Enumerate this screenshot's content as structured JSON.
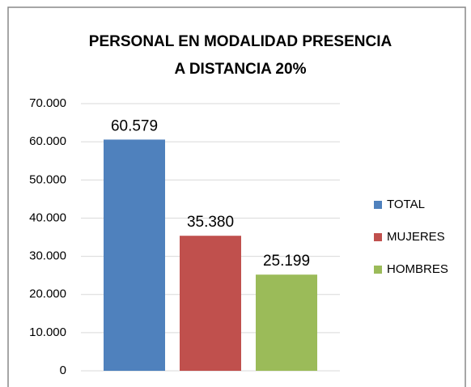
{
  "chart_data": {
    "type": "bar",
    "title": [
      "PERSONAL EN MODALIDAD PRESENCIA",
      "A DISTANCIA 20%"
    ],
    "categories": [
      null
    ],
    "series": [
      {
        "name": "TOTAL",
        "color": "#4f81bd",
        "values": [
          60579
        ],
        "value_labels": [
          "60.579"
        ]
      },
      {
        "name": "MUJERES",
        "color": "#c0504d",
        "values": [
          35380
        ],
        "value_labels": [
          "35.380"
        ]
      },
      {
        "name": "HOMBRES",
        "color": "#9bbb59",
        "values": [
          25199
        ],
        "value_labels": [
          "25.199"
        ]
      }
    ],
    "ylim": [
      0,
      70000
    ],
    "yticks": [
      0,
      {
        "value": 10000,
        "label": "10.000"
      },
      {
        "value": 20000,
        "label": "20.000"
      },
      {
        "value": 30000,
        "label": "30.000"
      },
      {
        "value": 40000,
        "label": "40.000"
      },
      {
        "value": 50000,
        "label": "50.000"
      },
      {
        "value": 60000,
        "label": "60.000"
      },
      {
        "value": 70000,
        "label": "70.000"
      }
    ],
    "grid": true,
    "legend": "right"
  }
}
